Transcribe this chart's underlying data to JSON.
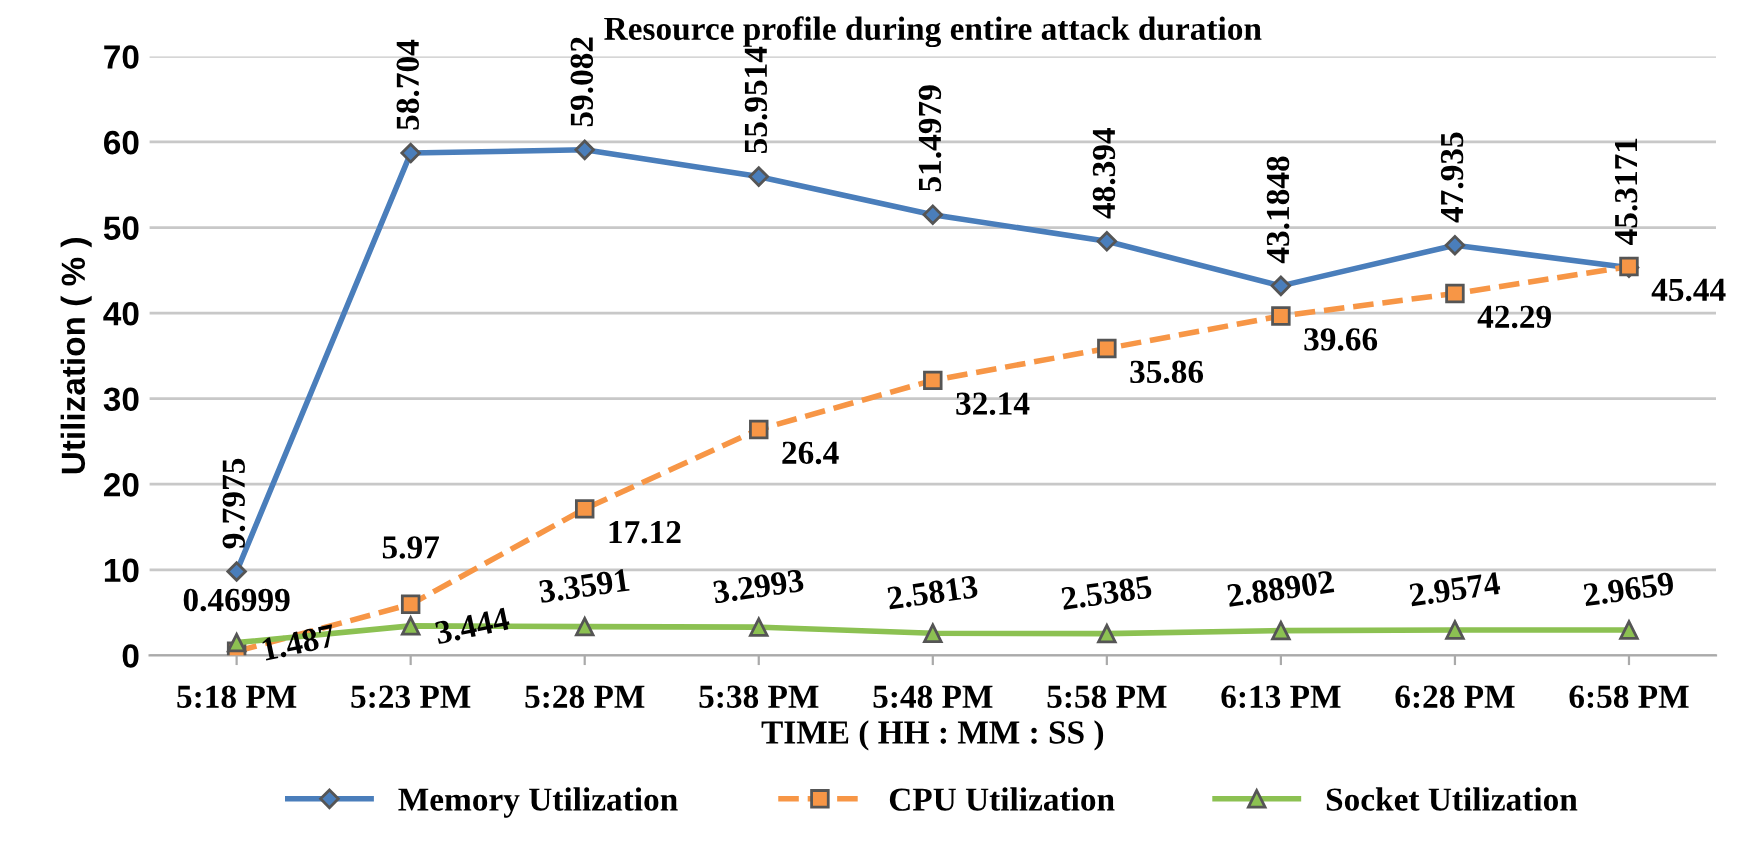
{
  "chart_data": {
    "type": "line",
    "title": "Resource profile during entire attack duration",
    "xlabel": "TIME ( HH : MM : SS )",
    "ylabel": "Utilization ( % )",
    "categories": [
      "5:18 PM",
      "5:23 PM",
      "5:28 PM",
      "5:38 PM",
      "5:48 PM",
      "5:58 PM",
      "6:13 PM",
      "6:28 PM",
      "6:58 PM"
    ],
    "series": [
      {
        "name": "Memory Utilization",
        "color": "#4a7ebb",
        "marker": "diamond",
        "line_style": "solid",
        "values": [
          9.7975,
          58.704,
          59.082,
          55.9514,
          51.4979,
          48.394,
          43.1848,
          47.935,
          45.3171
        ]
      },
      {
        "name": "CPU Utilization",
        "color": "#f79646",
        "marker": "square",
        "line_style": "dashed",
        "values": [
          0.46999,
          5.97,
          17.12,
          26.4,
          32.14,
          35.86,
          39.66,
          42.29,
          45.44
        ]
      },
      {
        "name": "Socket Utilization",
        "color": "#8cc152",
        "marker": "triangle",
        "line_style": "solid",
        "values": [
          1.487,
          3.444,
          3.3591,
          3.2993,
          2.5813,
          2.5385,
          2.88902,
          2.9574,
          2.9659
        ]
      }
    ],
    "ylim": [
      0,
      70
    ],
    "yticks": [
      0,
      10,
      20,
      30,
      40,
      50,
      60,
      70
    ],
    "grid": "y",
    "legend": "bottom",
    "data_labels": true
  }
}
